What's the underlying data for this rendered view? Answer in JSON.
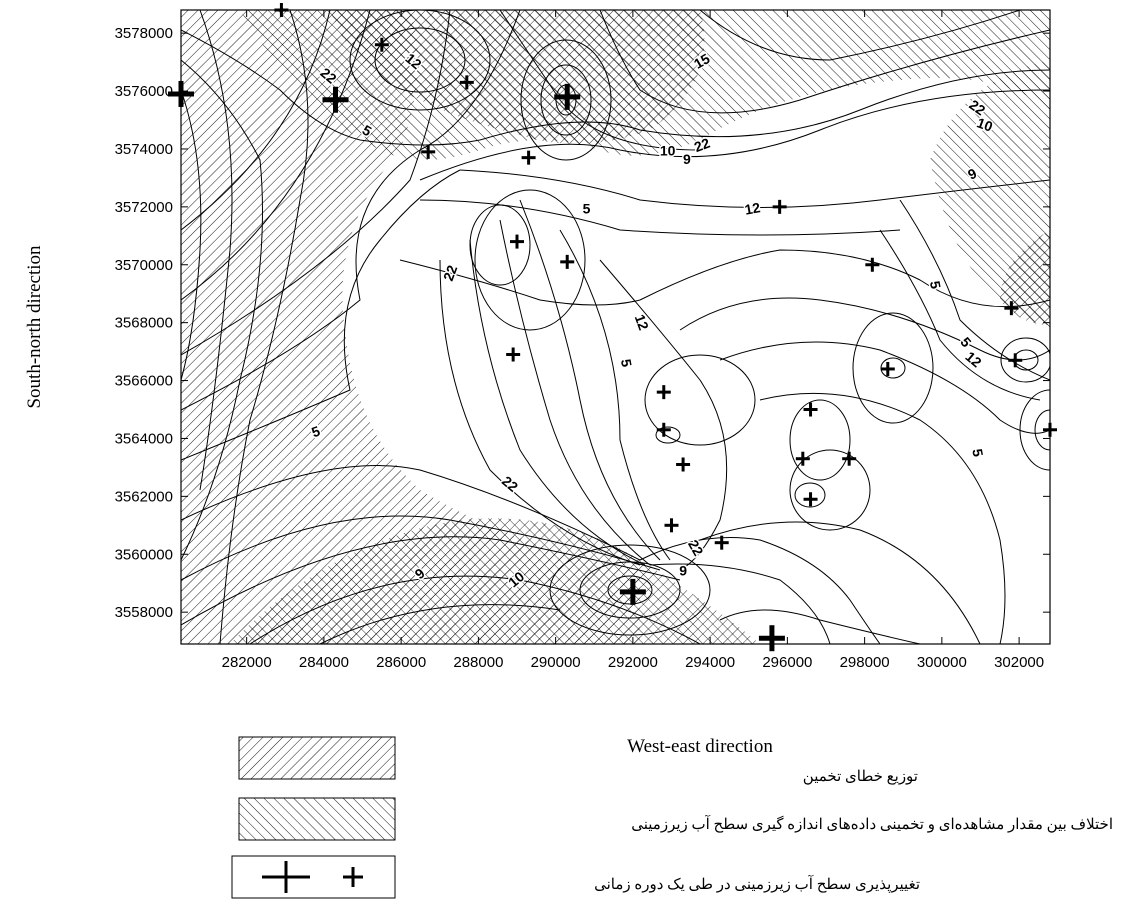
{
  "map": {
    "xlabel": "West-east direction",
    "ylabel": "South-north direction",
    "xticks": [
      282000,
      284000,
      286000,
      288000,
      290000,
      292000,
      294000,
      296000,
      298000,
      300000,
      302000
    ],
    "yticks": [
      3558000,
      3560000,
      3562000,
      3564000,
      3566000,
      3568000,
      3570000,
      3572000,
      3574000,
      3576000,
      3578000
    ],
    "xlim": [
      280300,
      302800
    ],
    "ylim": [
      3556900,
      3578800
    ],
    "contour_labels": [
      {
        "text": "22",
        "x": 284100,
        "y": 3576500,
        "angle": 40
      },
      {
        "text": "12",
        "x": 286300,
        "y": 3577000,
        "angle": 40
      },
      {
        "text": "5",
        "x": 285100,
        "y": 3574600,
        "angle": 30
      },
      {
        "text": "15",
        "x": 293800,
        "y": 3577000,
        "angle": -30
      },
      {
        "text": "10",
        "x": 292900,
        "y": 3573900,
        "angle": 0
      },
      {
        "text": "22",
        "x": 293800,
        "y": 3574100,
        "angle": -20
      },
      {
        "text": "9",
        "x": 293400,
        "y": 3573600,
        "angle": 0
      },
      {
        "text": "22",
        "x": 300900,
        "y": 3575400,
        "angle": 35
      },
      {
        "text": "10",
        "x": 301100,
        "y": 3574800,
        "angle": 20
      },
      {
        "text": "9",
        "x": 300800,
        "y": 3573100,
        "angle": -25
      },
      {
        "text": "5",
        "x": 290800,
        "y": 3571900,
        "angle": 0
      },
      {
        "text": "12",
        "x": 295100,
        "y": 3571900,
        "angle": -10
      },
      {
        "text": "22",
        "x": 287300,
        "y": 3569700,
        "angle": -70
      },
      {
        "text": "12",
        "x": 292200,
        "y": 3568000,
        "angle": 70
      },
      {
        "text": "5",
        "x": 291800,
        "y": 3566600,
        "angle": 80
      },
      {
        "text": "5",
        "x": 299800,
        "y": 3569300,
        "angle": 80
      },
      {
        "text": "5",
        "x": 300600,
        "y": 3567300,
        "angle": 50
      },
      {
        "text": "12",
        "x": 300800,
        "y": 3566700,
        "angle": 40
      },
      {
        "text": "5",
        "x": 300900,
        "y": 3563500,
        "angle": 80
      },
      {
        "text": "5",
        "x": 283800,
        "y": 3564200,
        "angle": -20
      },
      {
        "text": "22",
        "x": 288800,
        "y": 3562400,
        "angle": 40
      },
      {
        "text": "22",
        "x": 293600,
        "y": 3560200,
        "angle": 60
      },
      {
        "text": "9",
        "x": 293300,
        "y": 3559400,
        "angle": 0
      },
      {
        "text": "9",
        "x": 286500,
        "y": 3559300,
        "angle": -40
      },
      {
        "text": "10",
        "x": 289000,
        "y": 3559100,
        "angle": -40
      }
    ],
    "crosses_large": [
      {
        "x": 280300,
        "y": 3575900
      },
      {
        "x": 284300,
        "y": 3575700
      },
      {
        "x": 290300,
        "y": 3575800
      },
      {
        "x": 292000,
        "y": 3558700
      },
      {
        "x": 295600,
        "y": 3557100
      }
    ],
    "crosses_small": [
      {
        "x": 282900,
        "y": 3578800
      },
      {
        "x": 285500,
        "y": 3577600
      },
      {
        "x": 287700,
        "y": 3576300
      },
      {
        "x": 286700,
        "y": 3573900
      },
      {
        "x": 289300,
        "y": 3573700
      },
      {
        "x": 289000,
        "y": 3570800
      },
      {
        "x": 290300,
        "y": 3570100
      },
      {
        "x": 295800,
        "y": 3572000
      },
      {
        "x": 298200,
        "y": 3570000
      },
      {
        "x": 301800,
        "y": 3568500
      },
      {
        "x": 288900,
        "y": 3566900
      },
      {
        "x": 292800,
        "y": 3565600
      },
      {
        "x": 298600,
        "y": 3566400
      },
      {
        "x": 301900,
        "y": 3566700
      },
      {
        "x": 296600,
        "y": 3565000
      },
      {
        "x": 292800,
        "y": 3564300
      },
      {
        "x": 293300,
        "y": 3563100
      },
      {
        "x": 296400,
        "y": 3563300
      },
      {
        "x": 297600,
        "y": 3563300
      },
      {
        "x": 302800,
        "y": 3564300
      },
      {
        "x": 296600,
        "y": 3561900
      },
      {
        "x": 293000,
        "y": 3561000
      },
      {
        "x": 294300,
        "y": 3560400
      }
    ]
  },
  "legend": {
    "items": [
      {
        "label": "توزیع خطای تخمین",
        "pattern": "hatch-backslash"
      },
      {
        "label": "اختلاف بین مقدار مشاهده‌ای و تخمینی داده‌های اندازه گیری سطح آب زیرزمینی",
        "pattern": "hatch-slash"
      },
      {
        "label": "تغییرپذیری سطح آب زیرزمینی در طی یک دوره زمانی",
        "pattern": "crosses"
      }
    ]
  }
}
